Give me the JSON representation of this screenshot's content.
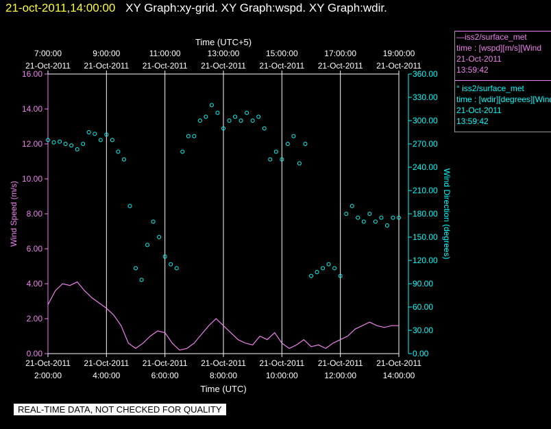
{
  "header": {
    "time": "21-oct-2011,14:00:00",
    "graphs": "XY Graph:xy-grid.  XY Graph:wspd.  XY Graph:wdir."
  },
  "legend": {
    "speed_title": "—iss2/surface_met",
    "speed_var": "time : [wspd][m/s][Wind",
    "speed_date": "21-Oct-2011",
    "speed_time": "13:59:42",
    "dir_title": "° iss2/surface_met",
    "dir_var": "time : [wdir][degrees][Wind",
    "dir_date": "21-Oct-2011",
    "dir_time": "13:59:42"
  },
  "quality_note": "REAL-TIME DATA, NOT CHECKED FOR QUALITY",
  "colors": {
    "speed": "#ee82ee",
    "direction": "#00ffff",
    "grid": "#ffffff",
    "header_time": "#ffff33"
  },
  "chart_data": {
    "type": "line",
    "top_axis_label": "Time (UTC+5)",
    "bottom_axis_label": "Time (UTC)",
    "left_axis_label": "Wind Speed (m/s)",
    "right_axis_label": "Wind Direction (degrees)",
    "x_range_utc_hours": [
      2,
      14
    ],
    "bottom_ticks": [
      {
        "h": 2,
        "date": "21-Oct-2011",
        "time": "2:00:00"
      },
      {
        "h": 4,
        "date": "21-Oct-2011",
        "time": "4:00:00"
      },
      {
        "h": 6,
        "date": "21-Oct-2011",
        "time": "6:00:00"
      },
      {
        "h": 8,
        "date": "21-Oct-2011",
        "time": "8:00:00"
      },
      {
        "h": 10,
        "date": "21-Oct-2011",
        "time": "10:00:00"
      },
      {
        "h": 12,
        "date": "21-Oct-2011",
        "time": "12:00:00"
      },
      {
        "h": 14,
        "date": "21-Oct-2011",
        "time": "14:00:00"
      }
    ],
    "top_ticks": [
      {
        "h": 2,
        "time": "7:00:00",
        "date": "21-Oct-2011"
      },
      {
        "h": 4,
        "time": "9:00:00",
        "date": "21-Oct-2011"
      },
      {
        "h": 6,
        "time": "11:00:00",
        "date": "21-Oct-2011"
      },
      {
        "h": 8,
        "time": "13:00:00",
        "date": "21-Oct-2011"
      },
      {
        "h": 10,
        "time": "15:00:00",
        "date": "21-Oct-2011"
      },
      {
        "h": 12,
        "time": "17:00:00",
        "date": "21-Oct-2011"
      },
      {
        "h": 14,
        "time": "19:00:00",
        "date": "21-Oct-2011"
      }
    ],
    "y_left_range": [
      0,
      16
    ],
    "y_left_ticks": [
      "0.00",
      "2.00",
      "4.00",
      "6.00",
      "8.00",
      "10.00",
      "12.00",
      "14.00",
      "16.00"
    ],
    "y_right_range": [
      0,
      360
    ],
    "y_right_ticks": [
      "0.00",
      "30.00",
      "60.00",
      "90.00",
      "120.00",
      "150.00",
      "180.00",
      "210.00",
      "240.00",
      "270.00",
      "300.00",
      "330.00",
      "360.00"
    ],
    "vertical_grid_hours": [
      4,
      6,
      8,
      10,
      12
    ],
    "speed_series": {
      "name": "wspd",
      "x": [
        2.0,
        2.25,
        2.5,
        2.75,
        3.0,
        3.25,
        3.5,
        3.75,
        4.0,
        4.25,
        4.5,
        4.75,
        5.0,
        5.25,
        5.5,
        5.75,
        6.0,
        6.25,
        6.5,
        6.75,
        7.0,
        7.25,
        7.5,
        7.75,
        8.0,
        8.25,
        8.5,
        8.75,
        9.0,
        9.25,
        9.5,
        9.75,
        10.0,
        10.25,
        10.5,
        10.75,
        11.0,
        11.25,
        11.5,
        11.75,
        12.0,
        12.25,
        12.5,
        12.75,
        13.0,
        13.25,
        13.5,
        13.75,
        14.0
      ],
      "values": [
        2.8,
        3.6,
        4.0,
        3.9,
        4.1,
        3.6,
        3.2,
        2.9,
        2.6,
        2.2,
        1.6,
        0.6,
        0.3,
        0.6,
        1.0,
        1.3,
        1.2,
        0.6,
        0.2,
        0.3,
        0.6,
        1.1,
        1.6,
        2.0,
        1.6,
        1.2,
        0.8,
        0.6,
        0.5,
        1.0,
        0.8,
        1.2,
        0.6,
        0.3,
        0.5,
        0.8,
        0.4,
        0.5,
        0.3,
        0.6,
        0.8,
        1.0,
        1.4,
        1.6,
        1.8,
        1.6,
        1.5,
        1.6,
        1.6
      ]
    },
    "direction_series": {
      "name": "wdir",
      "x": [
        2.0,
        2.2,
        2.4,
        2.6,
        2.8,
        3.0,
        3.2,
        3.4,
        3.6,
        3.8,
        4.0,
        4.2,
        4.4,
        4.6,
        4.8,
        5.0,
        5.2,
        5.4,
        5.6,
        5.8,
        6.0,
        6.2,
        6.4,
        6.6,
        6.8,
        7.0,
        7.2,
        7.4,
        7.6,
        7.8,
        8.0,
        8.2,
        8.4,
        8.6,
        8.8,
        9.0,
        9.2,
        9.4,
        9.6,
        9.8,
        10.0,
        10.2,
        10.4,
        10.6,
        10.8,
        11.0,
        11.2,
        11.4,
        11.6,
        11.8,
        12.0,
        12.2,
        12.4,
        12.6,
        12.8,
        13.0,
        13.2,
        13.4,
        13.6,
        13.8,
        14.0
      ],
      "values": [
        275,
        272,
        273,
        270,
        268,
        263,
        270,
        285,
        283,
        275,
        282,
        275,
        260,
        250,
        190,
        110,
        95,
        140,
        170,
        150,
        125,
        115,
        110,
        260,
        280,
        280,
        300,
        305,
        320,
        310,
        290,
        300,
        305,
        300,
        310,
        300,
        305,
        290,
        250,
        260,
        250,
        270,
        280,
        245,
        270,
        100,
        105,
        110,
        115,
        110,
        100,
        180,
        190,
        175,
        170,
        180,
        170,
        175,
        165,
        175,
        175
      ]
    }
  }
}
